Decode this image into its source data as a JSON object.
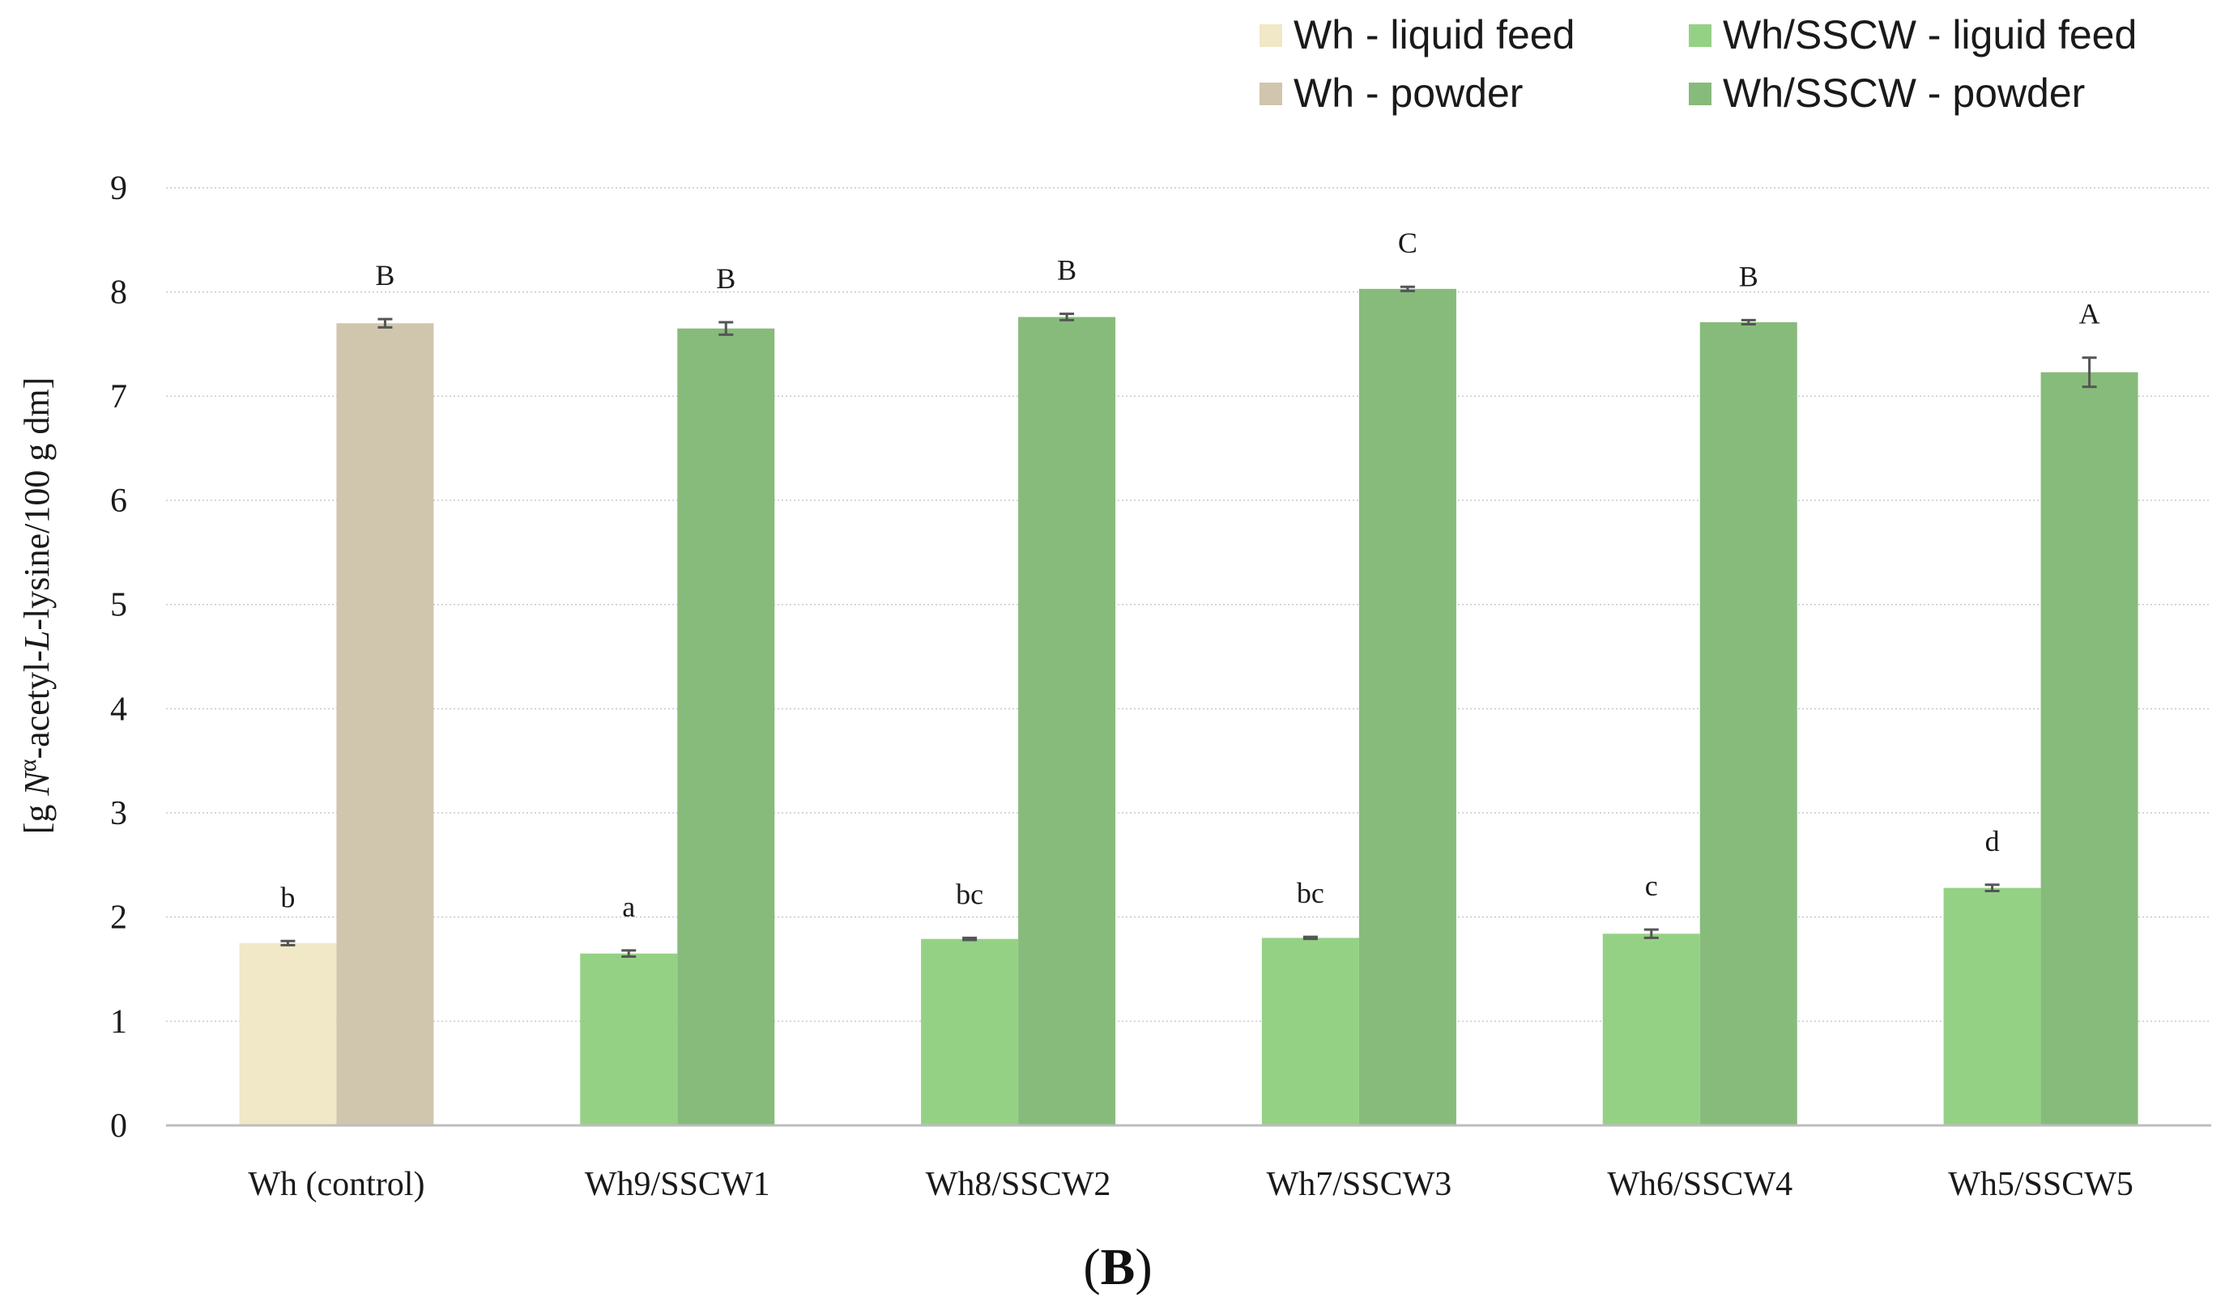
{
  "chart_data": {
    "type": "bar",
    "panel_label": "B",
    "ylabel_parts": [
      "[g ",
      "N",
      "α",
      "-acetyl-",
      "L",
      "-lysine/100 g dm]"
    ],
    "ylim": [
      0,
      9
    ],
    "yticks": [
      0,
      1,
      2,
      3,
      4,
      5,
      6,
      7,
      8,
      9
    ],
    "grid": true,
    "legend_position": "top-right",
    "categories": [
      "Wh (control)",
      "Wh9/SSCW1",
      "Wh8/SSCW2",
      "Wh7/SSCW3",
      "Wh6/SSCW4",
      "Wh5/SSCW5"
    ],
    "legend": [
      {
        "name": "Wh - liquid feed",
        "color": "#f0e8c6"
      },
      {
        "name": "Wh/SSCW - liguid feed",
        "color": "#95d185"
      },
      {
        "name": "Wh - powder",
        "color": "#d0c6ae"
      },
      {
        "name": "Wh/SSCW - powder",
        "color": "#87bb7b"
      }
    ],
    "series": [
      {
        "name": "liquid feed",
        "colors": [
          "#f0e8c6",
          "#95d185",
          "#95d185",
          "#95d185",
          "#95d185",
          "#95d185"
        ],
        "values": [
          1.75,
          1.65,
          1.79,
          1.8,
          1.84,
          2.28
        ],
        "errors": [
          0.02,
          0.03,
          0.01,
          0.01,
          0.04,
          0.03
        ],
        "labels": [
          "b",
          "a",
          "bc",
          "bc",
          "c",
          "d"
        ]
      },
      {
        "name": "powder",
        "colors": [
          "#d0c6ae",
          "#87bb7b",
          "#87bb7b",
          "#87bb7b",
          "#87bb7b",
          "#87bb7b"
        ],
        "values": [
          7.7,
          7.65,
          7.76,
          8.03,
          7.71,
          7.23
        ],
        "errors": [
          0.04,
          0.06,
          0.03,
          0.02,
          0.02,
          0.14
        ],
        "labels": [
          "B",
          "B",
          "B",
          "C",
          "B",
          "A"
        ]
      }
    ]
  }
}
